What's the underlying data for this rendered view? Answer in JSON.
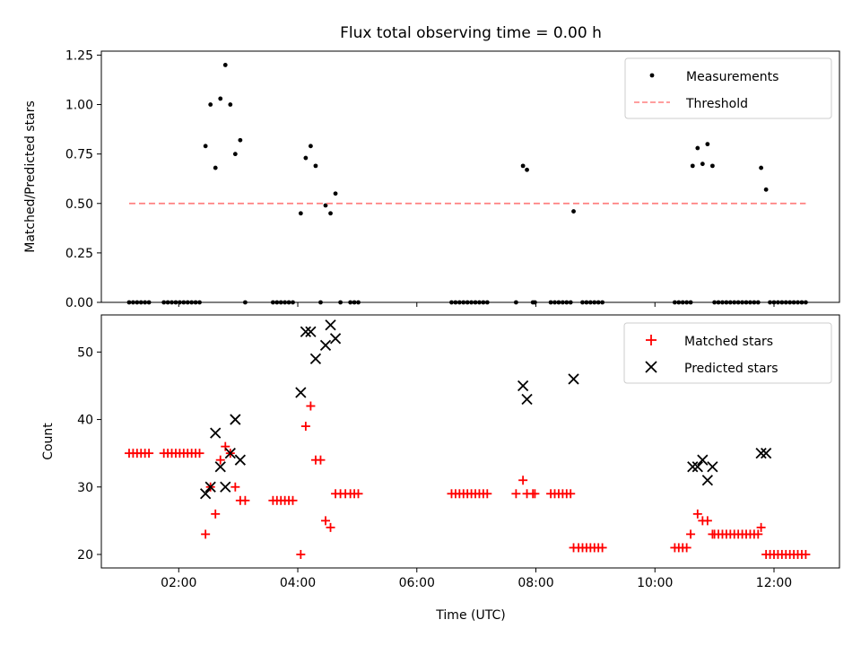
{
  "figure": {
    "title": "Flux total observing time = 0.00 h"
  },
  "chart_data": [
    {
      "type": "scatter",
      "panel": "top",
      "ylabel": "Matched/Predicted stars",
      "xlabel": "",
      "ylim": [
        0,
        1.27
      ],
      "xlim_minutes": [
        42,
        786
      ],
      "yticks": [
        0.0,
        0.25,
        0.5,
        0.75,
        1.0,
        1.25
      ],
      "ytick_labels": [
        "0.00",
        "0.25",
        "0.50",
        "0.75",
        "1.00",
        "1.25"
      ],
      "xticks_minutes": [
        120,
        240,
        360,
        480,
        600,
        720
      ],
      "show_xtick_labels": false,
      "grid": false,
      "legend": {
        "position": "top-right",
        "entries": [
          {
            "label": "Measurements",
            "marker": "dot",
            "color": "#000000"
          },
          {
            "label": "Threshold",
            "marker": "dashed-line",
            "color": "#ff7f7f"
          }
        ]
      },
      "series": [
        {
          "name": "Measurements",
          "marker": "dot",
          "color": "#000000",
          "points": [
            [
              "01:10",
              0
            ],
            [
              "01:14",
              0
            ],
            [
              "01:18",
              0
            ],
            [
              "01:22",
              0
            ],
            [
              "01:26",
              0
            ],
            [
              "01:30",
              0
            ],
            [
              "01:45",
              0
            ],
            [
              "01:49",
              0
            ],
            [
              "01:53",
              0
            ],
            [
              "01:57",
              0
            ],
            [
              "02:01",
              0
            ],
            [
              "02:05",
              0
            ],
            [
              "02:09",
              0
            ],
            [
              "02:13",
              0
            ],
            [
              "02:17",
              0
            ],
            [
              "02:21",
              0
            ],
            [
              "02:27",
              0.79
            ],
            [
              "02:32",
              1.0
            ],
            [
              "02:37",
              0.68
            ],
            [
              "02:42",
              1.03
            ],
            [
              "02:47",
              1.2
            ],
            [
              "02:52",
              1.0
            ],
            [
              "02:57",
              0.75
            ],
            [
              "03:02",
              0.82
            ],
            [
              "03:07",
              0
            ],
            [
              "03:35",
              0
            ],
            [
              "03:39",
              0
            ],
            [
              "03:43",
              0
            ],
            [
              "03:47",
              0
            ],
            [
              "03:51",
              0
            ],
            [
              "03:55",
              0
            ],
            [
              "04:03",
              0.45
            ],
            [
              "04:08",
              0.73
            ],
            [
              "04:13",
              0.79
            ],
            [
              "04:18",
              0.69
            ],
            [
              "04:23",
              0
            ],
            [
              "04:28",
              0.49
            ],
            [
              "04:33",
              0.45
            ],
            [
              "04:38",
              0.55
            ],
            [
              "04:43",
              0
            ],
            [
              "04:53",
              0
            ],
            [
              "04:57",
              0
            ],
            [
              "05:01",
              0
            ],
            [
              "06:35",
              0
            ],
            [
              "06:39",
              0
            ],
            [
              "06:43",
              0
            ],
            [
              "06:47",
              0
            ],
            [
              "06:51",
              0
            ],
            [
              "06:55",
              0
            ],
            [
              "06:59",
              0
            ],
            [
              "07:03",
              0
            ],
            [
              "07:07",
              0
            ],
            [
              "07:11",
              0
            ],
            [
              "07:40",
              0
            ],
            [
              "07:47",
              0.69
            ],
            [
              "07:51",
              0.67
            ],
            [
              "07:57",
              0
            ],
            [
              "07:59",
              0
            ],
            [
              "08:15",
              0
            ],
            [
              "08:19",
              0
            ],
            [
              "08:23",
              0
            ],
            [
              "08:27",
              0
            ],
            [
              "08:31",
              0
            ],
            [
              "08:35",
              0
            ],
            [
              "08:38",
              0.46
            ],
            [
              "08:47",
              0
            ],
            [
              "08:51",
              0
            ],
            [
              "08:55",
              0
            ],
            [
              "08:59",
              0
            ],
            [
              "09:03",
              0
            ],
            [
              "09:07",
              0
            ],
            [
              "10:20",
              0
            ],
            [
              "10:24",
              0
            ],
            [
              "10:28",
              0
            ],
            [
              "10:32",
              0
            ],
            [
              "10:36",
              0
            ],
            [
              "10:38",
              0.69
            ],
            [
              "10:43",
              0.78
            ],
            [
              "10:48",
              0.7
            ],
            [
              "10:53",
              0.8
            ],
            [
              "10:58",
              0.69
            ],
            [
              "11:00",
              0
            ],
            [
              "11:04",
              0
            ],
            [
              "11:08",
              0
            ],
            [
              "11:12",
              0
            ],
            [
              "11:16",
              0
            ],
            [
              "11:20",
              0
            ],
            [
              "11:24",
              0
            ],
            [
              "11:28",
              0
            ],
            [
              "11:32",
              0
            ],
            [
              "11:36",
              0
            ],
            [
              "11:40",
              0
            ],
            [
              "11:44",
              0
            ],
            [
              "11:47",
              0.68
            ],
            [
              "11:52",
              0.57
            ],
            [
              "11:56",
              0
            ],
            [
              "12:00",
              0
            ],
            [
              "12:04",
              0
            ],
            [
              "12:08",
              0
            ],
            [
              "12:12",
              0
            ],
            [
              "12:16",
              0
            ],
            [
              "12:20",
              0
            ],
            [
              "12:24",
              0
            ],
            [
              "12:28",
              0
            ],
            [
              "12:32",
              0
            ]
          ]
        },
        {
          "name": "Threshold",
          "style": "dashed",
          "color": "#ff7f7f",
          "points": [
            [
              "01:10",
              0.5
            ],
            [
              "12:32",
              0.5
            ]
          ]
        }
      ]
    },
    {
      "type": "scatter",
      "panel": "bottom",
      "ylabel": "Count",
      "xlabel": "Time (UTC)",
      "ylim": [
        18,
        55.5
      ],
      "xlim_minutes": [
        42,
        786
      ],
      "yticks": [
        20,
        30,
        40,
        50
      ],
      "ytick_labels": [
        "20",
        "30",
        "40",
        "50"
      ],
      "xticks_minutes": [
        120,
        240,
        360,
        480,
        600,
        720
      ],
      "xtick_labels": [
        "02:00",
        "04:00",
        "06:00",
        "08:00",
        "10:00",
        "12:00"
      ],
      "grid": false,
      "legend": {
        "position": "top-right",
        "entries": [
          {
            "label": "Matched stars",
            "marker": "plus",
            "color": "#ff0000"
          },
          {
            "label": "Predicted stars",
            "marker": "x",
            "color": "#000000"
          }
        ]
      },
      "series": [
        {
          "name": "Matched stars",
          "marker": "plus",
          "color": "#ff0000",
          "points": [
            [
              "01:10",
              35
            ],
            [
              "01:14",
              35
            ],
            [
              "01:18",
              35
            ],
            [
              "01:22",
              35
            ],
            [
              "01:26",
              35
            ],
            [
              "01:30",
              35
            ],
            [
              "01:45",
              35
            ],
            [
              "01:49",
              35
            ],
            [
              "01:53",
              35
            ],
            [
              "01:57",
              35
            ],
            [
              "02:01",
              35
            ],
            [
              "02:05",
              35
            ],
            [
              "02:09",
              35
            ],
            [
              "02:13",
              35
            ],
            [
              "02:17",
              35
            ],
            [
              "02:21",
              35
            ],
            [
              "02:27",
              23
            ],
            [
              "02:32",
              30
            ],
            [
              "02:37",
              26
            ],
            [
              "02:42",
              34
            ],
            [
              "02:47",
              36
            ],
            [
              "02:52",
              35
            ],
            [
              "02:57",
              30
            ],
            [
              "03:02",
              28
            ],
            [
              "03:07",
              28
            ],
            [
              "03:35",
              28
            ],
            [
              "03:39",
              28
            ],
            [
              "03:43",
              28
            ],
            [
              "03:47",
              28
            ],
            [
              "03:51",
              28
            ],
            [
              "03:55",
              28
            ],
            [
              "04:03",
              20
            ],
            [
              "04:08",
              39
            ],
            [
              "04:13",
              42
            ],
            [
              "04:18",
              34
            ],
            [
              "04:23",
              34
            ],
            [
              "04:28",
              25
            ],
            [
              "04:33",
              24
            ],
            [
              "04:38",
              29
            ],
            [
              "04:43",
              29
            ],
            [
              "04:48",
              29
            ],
            [
              "04:53",
              29
            ],
            [
              "04:57",
              29
            ],
            [
              "05:01",
              29
            ],
            [
              "06:35",
              29
            ],
            [
              "06:39",
              29
            ],
            [
              "06:43",
              29
            ],
            [
              "06:47",
              29
            ],
            [
              "06:51",
              29
            ],
            [
              "06:55",
              29
            ],
            [
              "06:59",
              29
            ],
            [
              "07:03",
              29
            ],
            [
              "07:07",
              29
            ],
            [
              "07:11",
              29
            ],
            [
              "07:40",
              29
            ],
            [
              "07:47",
              31
            ],
            [
              "07:51",
              29
            ],
            [
              "07:57",
              29
            ],
            [
              "07:59",
              29
            ],
            [
              "08:15",
              29
            ],
            [
              "08:19",
              29
            ],
            [
              "08:23",
              29
            ],
            [
              "08:27",
              29
            ],
            [
              "08:31",
              29
            ],
            [
              "08:35",
              29
            ],
            [
              "08:38",
              21
            ],
            [
              "08:43",
              21
            ],
            [
              "08:47",
              21
            ],
            [
              "08:51",
              21
            ],
            [
              "08:55",
              21
            ],
            [
              "08:59",
              21
            ],
            [
              "09:03",
              21
            ],
            [
              "09:07",
              21
            ],
            [
              "10:20",
              21
            ],
            [
              "10:24",
              21
            ],
            [
              "10:28",
              21
            ],
            [
              "10:32",
              21
            ],
            [
              "10:36",
              23
            ],
            [
              "10:43",
              26
            ],
            [
              "10:48",
              25
            ],
            [
              "10:53",
              25
            ],
            [
              "10:58",
              23
            ],
            [
              "11:00",
              23
            ],
            [
              "11:04",
              23
            ],
            [
              "11:08",
              23
            ],
            [
              "11:12",
              23
            ],
            [
              "11:16",
              23
            ],
            [
              "11:20",
              23
            ],
            [
              "11:24",
              23
            ],
            [
              "11:28",
              23
            ],
            [
              "11:32",
              23
            ],
            [
              "11:36",
              23
            ],
            [
              "11:40",
              23
            ],
            [
              "11:44",
              23
            ],
            [
              "11:47",
              24
            ],
            [
              "11:52",
              20
            ],
            [
              "11:56",
              20
            ],
            [
              "12:00",
              20
            ],
            [
              "12:04",
              20
            ],
            [
              "12:08",
              20
            ],
            [
              "12:12",
              20
            ],
            [
              "12:16",
              20
            ],
            [
              "12:20",
              20
            ],
            [
              "12:24",
              20
            ],
            [
              "12:28",
              20
            ],
            [
              "12:32",
              20
            ]
          ]
        },
        {
          "name": "Predicted stars",
          "marker": "x",
          "color": "#000000",
          "points": [
            [
              "02:27",
              29
            ],
            [
              "02:32",
              30
            ],
            [
              "02:37",
              38
            ],
            [
              "02:42",
              33
            ],
            [
              "02:47",
              30
            ],
            [
              "02:52",
              35
            ],
            [
              "02:57",
              40
            ],
            [
              "03:02",
              34
            ],
            [
              "04:03",
              44
            ],
            [
              "04:08",
              53
            ],
            [
              "04:13",
              53
            ],
            [
              "04:18",
              49
            ],
            [
              "04:28",
              51
            ],
            [
              "04:33",
              54
            ],
            [
              "04:38",
              52
            ],
            [
              "07:47",
              45
            ],
            [
              "07:51",
              43
            ],
            [
              "08:38",
              46
            ],
            [
              "10:38",
              33
            ],
            [
              "10:43",
              33
            ],
            [
              "10:48",
              34
            ],
            [
              "10:53",
              31
            ],
            [
              "10:58",
              33
            ],
            [
              "11:47",
              35
            ],
            [
              "11:52",
              35
            ]
          ]
        }
      ]
    }
  ]
}
